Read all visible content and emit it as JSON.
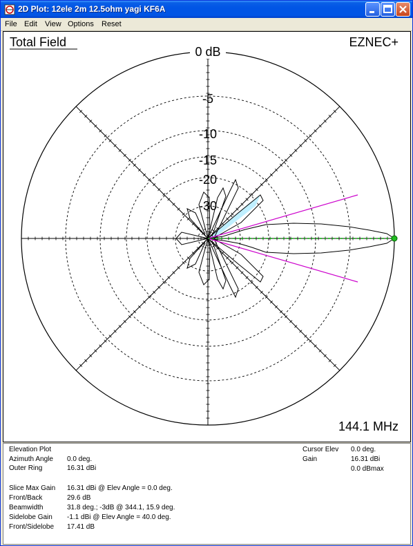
{
  "window": {
    "title": "2D Plot: 12ele 2m 12.5ohm yagi KF6A",
    "buttons": {
      "minimize": "minimize-icon",
      "maximize": "maximize-icon",
      "close": "close-icon"
    }
  },
  "menu": [
    "File",
    "Edit",
    "View",
    "Options",
    "Reset"
  ],
  "plot": {
    "field_label": "Total Field",
    "brand_label": "EZNEC+",
    "frequency": "144.1 MHz",
    "ring_labels": [
      "0 dB",
      "-5",
      "-10",
      "-15",
      "-20",
      "-30"
    ],
    "colors": {
      "pattern": "#000000",
      "beamwidth_lines": "#cc00cc",
      "cursor_line": "#00aa00",
      "lobe_fill": "#bfefff"
    }
  },
  "info": {
    "plot_type": "Elevation Plot",
    "rows_left": [
      {
        "label": "Azimuth Angle",
        "value": "0.0 deg."
      },
      {
        "label": "Outer Ring",
        "value": "16.31 dBi"
      }
    ],
    "rows_stats": [
      {
        "label": "Slice Max Gain",
        "value": "16.31 dBi @ Elev Angle = 0.0 deg."
      },
      {
        "label": "Front/Back",
        "value": "29.6 dB"
      },
      {
        "label": "Beamwidth",
        "value": "31.8 deg.; -3dB @ 344.1, 15.9 deg."
      },
      {
        "label": "Sidelobe Gain",
        "value": "-1.1 dBi @ Elev Angle = 40.0 deg."
      },
      {
        "label": "Front/Sidelobe",
        "value": "17.41 dB"
      }
    ],
    "cursor": [
      {
        "label": "Cursor Elev",
        "value": "0.0 deg."
      },
      {
        "label": "Gain",
        "value": "16.31 dBi"
      },
      {
        "label": "",
        "value": "0.0 dBmax"
      }
    ]
  }
}
